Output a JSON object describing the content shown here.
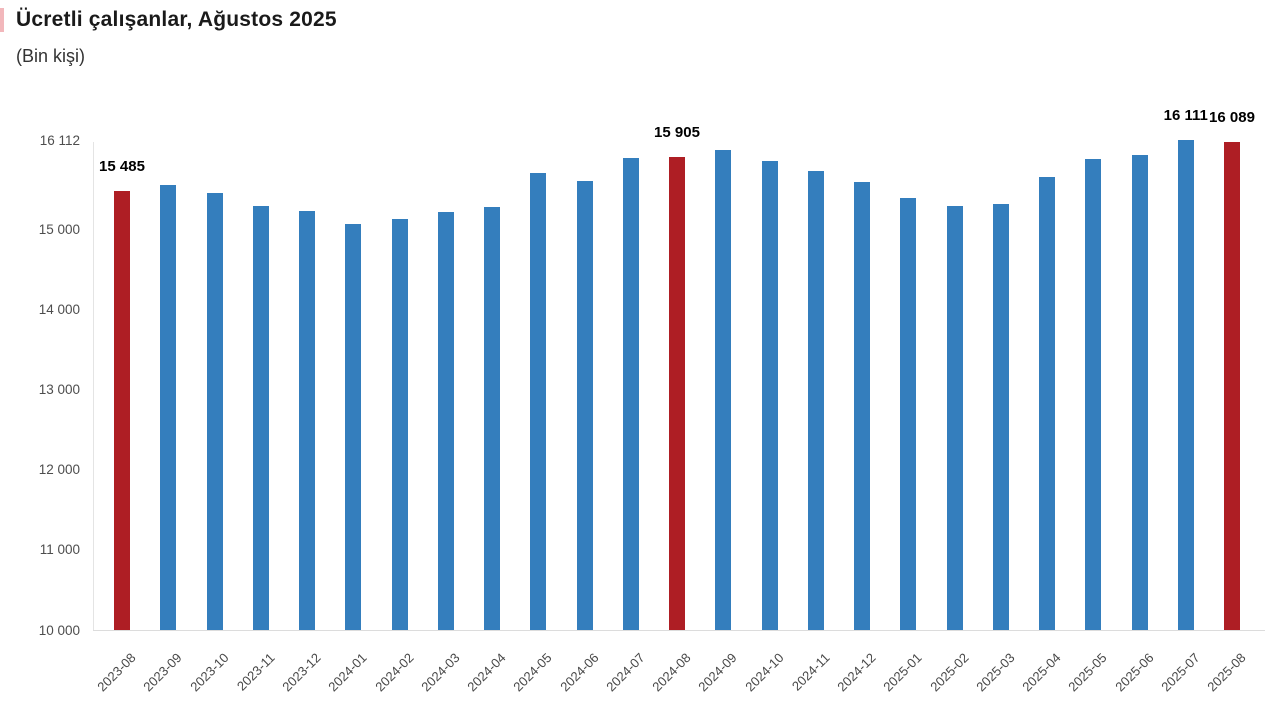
{
  "header": {
    "title": "Ücretli çalışanlar, Ağustos 2025",
    "subtitle": "(Bin kişi)"
  },
  "colors": {
    "bar_blue": "#347EBD",
    "bar_red": "#AE1E24",
    "axis_line": "#e0e0e0",
    "tick_text": "#4d4d4d",
    "value_label_text": "#000000"
  },
  "chart_data": {
    "type": "bar",
    "title": "Ücretli çalışanlar, Ağustos 2025",
    "subtitle": "(Bin kişi)",
    "xlabel": "",
    "ylabel": "Bin kişi",
    "ylim": [
      10000,
      16112
    ],
    "grid": false,
    "legend": false,
    "categories": [
      "2023-08",
      "2023-09",
      "2023-10",
      "2023-11",
      "2023-12",
      "2024-01",
      "2024-02",
      "2024-03",
      "2024-04",
      "2024-05",
      "2024-06",
      "2024-07",
      "2024-08",
      "2024-09",
      "2024-10",
      "2024-11",
      "2024-12",
      "2025-01",
      "2025-02",
      "2025-03",
      "2025-04",
      "2025-05",
      "2025-06",
      "2025-07",
      "2025-08"
    ],
    "values": [
      15485,
      15550,
      15460,
      15295,
      15235,
      15070,
      15125,
      15220,
      15275,
      15700,
      15605,
      15895,
      15905,
      15990,
      15855,
      15730,
      15590,
      15395,
      15290,
      15315,
      15655,
      15880,
      15930,
      16111,
      16089
    ],
    "highlight_indices": [
      0,
      12,
      24
    ],
    "data_labels": [
      {
        "index": 0,
        "text": "15 485"
      },
      {
        "index": 12,
        "text": "15 905"
      },
      {
        "index": 23,
        "text": "16 111"
      },
      {
        "index": 24,
        "text": "16 089"
      }
    ],
    "y_ticks": [
      {
        "value": 16112,
        "label": "16 112"
      },
      {
        "value": 15000,
        "label": "15 000"
      },
      {
        "value": 14000,
        "label": "14 000"
      },
      {
        "value": 13000,
        "label": "13 000"
      },
      {
        "value": 12000,
        "label": "12 000"
      },
      {
        "value": 11000,
        "label": "11 000"
      },
      {
        "value": 10000,
        "label": "10 000"
      }
    ]
  }
}
